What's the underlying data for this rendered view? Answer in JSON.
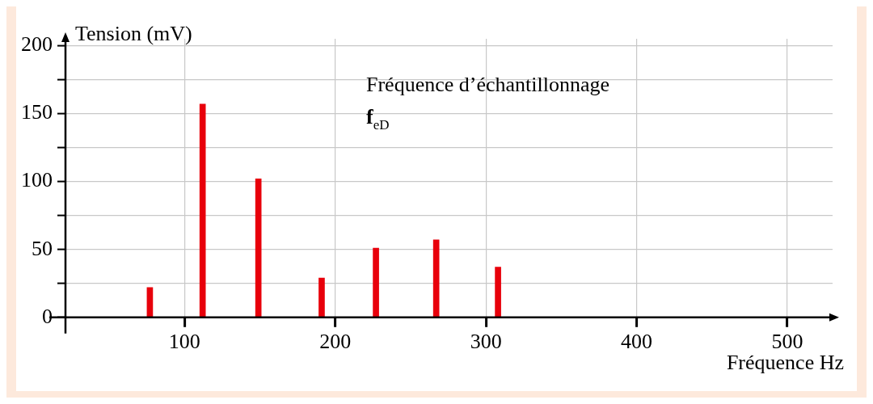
{
  "chart_data": {
    "type": "bar",
    "xlabel": "Fréquence Hz",
    "ylabel": "Tension (mV)",
    "x": [
      77,
      112,
      149,
      191,
      227,
      267,
      308
    ],
    "values": [
      22,
      157,
      102,
      29,
      51,
      57,
      37
    ],
    "color": "#e8000b",
    "xlim": [
      21,
      530
    ],
    "xticks": [
      100,
      200,
      300,
      400,
      500
    ],
    "ylim": [
      0,
      205
    ],
    "yticks": [
      0,
      {
        "value": 25,
        "label": null
      },
      50,
      {
        "value": 75,
        "label": null
      },
      100,
      {
        "value": 125,
        "label": null
      },
      150,
      {
        "value": 175,
        "label": null
      },
      200
    ],
    "grid": true,
    "annotations": [
      "Fréquence d’échantillonnage",
      "f$_{eD}$"
    ]
  }
}
